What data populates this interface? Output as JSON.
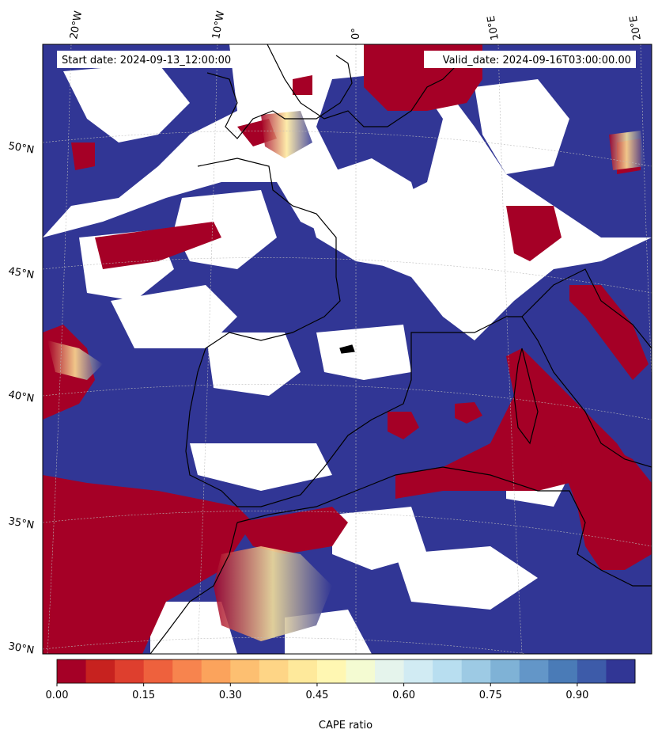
{
  "map": {
    "start_date": "Start date: 2024-09-13_12:00:00",
    "valid_date": "Valid_date: 2024-09-16T03:00:00.00",
    "lon_labels": [
      "20°W",
      "10°W",
      "0°",
      "10°E",
      "20°E"
    ],
    "lat_labels": [
      "50°N",
      "45°N",
      "40°N",
      "35°N",
      "30°N"
    ],
    "colors": {
      "high": "#313695",
      "low": "#a50026",
      "coast": "#000000"
    }
  },
  "colorbar": {
    "label": "CAPE ratio",
    "tick_labels": [
      "0.00",
      "0.15",
      "0.30",
      "0.45",
      "0.60",
      "0.75",
      "0.90"
    ],
    "colors": [
      "#a50026",
      "#c7221f",
      "#de3f2e",
      "#ee613d",
      "#f7844e",
      "#fba35c",
      "#fdbf71",
      "#fed586",
      "#fee99b",
      "#fff7b2",
      "#f4fbd2",
      "#e5f4ec",
      "#d1ebf3",
      "#b8def0",
      "#9dcae4",
      "#7fb2d6",
      "#6396c8",
      "#4a7bb7",
      "#3d5ba9",
      "#313695"
    ]
  }
}
